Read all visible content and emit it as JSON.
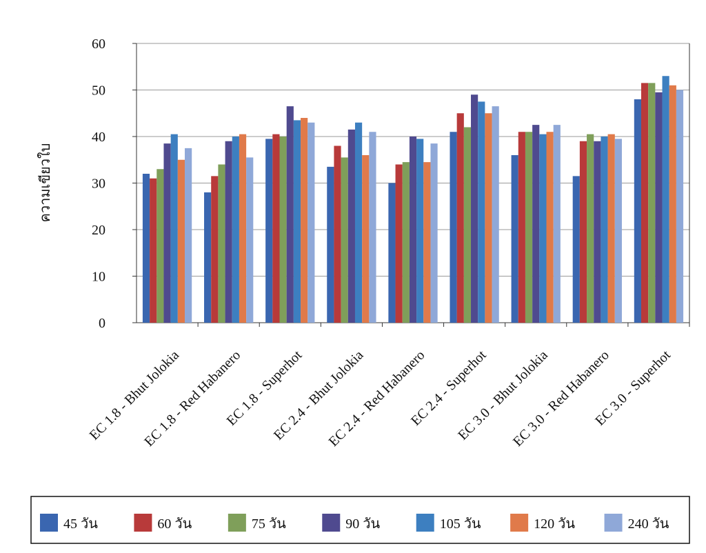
{
  "chart_data": {
    "type": "bar",
    "y_label": "ความเขียวใบ",
    "categories": [
      "EC 1.8 - Bhut Jolokia",
      "EC 1.8 - Red Habanero",
      "EC 1.8 - Superhot",
      "EC 2.4 - Bhut Jolokia",
      "EC 2.4 - Red Habanero",
      "EC 2.4 - Superhot",
      "EC 3.0 - Bhut Jolokia",
      "EC 3.0 - Red Habanero",
      "EC 3.0 - Superhot"
    ],
    "series": [
      {
        "name": "45 วัน",
        "color": "#3a66b0",
        "values": [
          32,
          28,
          39.5,
          33.5,
          30,
          41,
          36,
          31.5,
          48
        ]
      },
      {
        "name": "60 วัน",
        "color": "#b83a3a",
        "values": [
          31,
          31.5,
          40.5,
          38,
          34,
          45,
          41,
          39,
          51.5
        ]
      },
      {
        "name": "75 วัน",
        "color": "#7f9f5a",
        "values": [
          33,
          34,
          40,
          35.5,
          34.5,
          42,
          41,
          40.5,
          51.5
        ]
      },
      {
        "name": "90 วัน",
        "color": "#4f4a8f",
        "values": [
          38.5,
          39,
          46.5,
          41.5,
          40,
          49,
          42.5,
          39,
          49.5
        ]
      },
      {
        "name": "105 วัน",
        "color": "#3d7fc0",
        "values": [
          40.5,
          40,
          43.5,
          43,
          39.5,
          47.5,
          40.5,
          40,
          53
        ]
      },
      {
        "name": "120 วัน",
        "color": "#e07a4a",
        "values": [
          35,
          40.5,
          44,
          36,
          34.5,
          45,
          41,
          40.5,
          51
        ]
      },
      {
        "name": "240 วัน",
        "color": "#8fa8d8",
        "values": [
          37.5,
          35.5,
          43,
          41,
          38.5,
          46.5,
          42.5,
          39.5,
          50
        ]
      }
    ],
    "ylim": [
      0,
      60
    ],
    "yticks": [
      0,
      10,
      20,
      30,
      40,
      50,
      60
    ],
    "grid": true,
    "legend": "bottom"
  }
}
